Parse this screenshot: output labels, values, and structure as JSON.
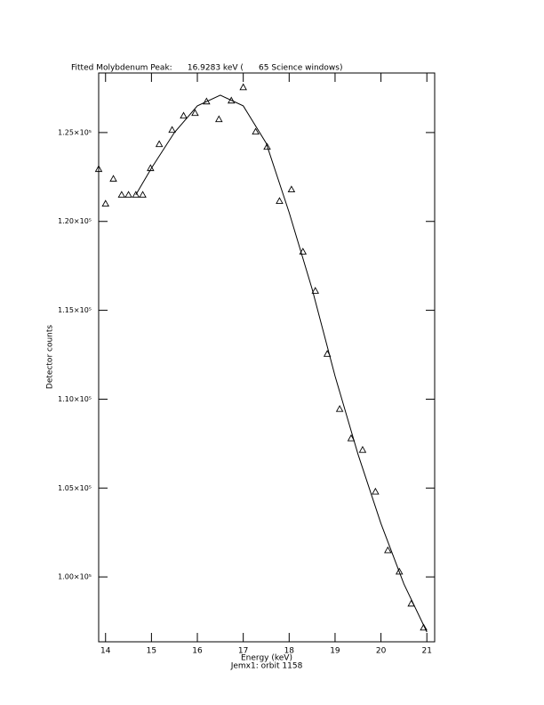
{
  "chart_data": {
    "type": "scatter",
    "title": "Fitted Molybdenum Peak:      16.9283 keV (      65 Science windows)",
    "x_label": "Energy (keV)",
    "subtitle": "Jemx1: orbit 1158",
    "y_label": "Detector counts",
    "xlim": [
      13.85,
      21.17
    ],
    "ylim": [
      96350,
      128350
    ],
    "xticks": [
      14,
      15,
      16,
      17,
      18,
      19,
      20,
      21
    ],
    "yticks": [
      {
        "value": 100000,
        "label": "1.00×10⁵"
      },
      {
        "value": 105000,
        "label": "1.05×10⁵"
      },
      {
        "value": 110000,
        "label": "1.10×10⁵"
      },
      {
        "value": 115000,
        "label": "1.15×10⁵"
      },
      {
        "value": 120000,
        "label": "1.20×10⁵"
      },
      {
        "value": 125000,
        "label": "1.25×10⁵"
      }
    ],
    "grid": false,
    "series": [
      {
        "style": "marker",
        "marker": "triangle",
        "color": "#000000",
        "x": [
          13.85,
          14.0,
          14.17,
          14.35,
          14.5,
          14.66,
          14.81,
          14.98,
          15.17,
          15.45,
          15.7,
          15.95,
          16.2,
          16.47,
          16.74,
          17.0,
          17.27,
          17.52,
          17.79,
          18.05,
          18.3,
          18.57,
          18.83,
          19.1,
          19.35,
          19.6,
          19.88,
          20.15,
          20.4,
          20.66,
          20.93
        ],
        "values": [
          122950,
          121000,
          122400,
          121500,
          121500,
          121500,
          121500,
          123000,
          124350,
          125150,
          125950,
          126100,
          126750,
          125750,
          126800,
          127550,
          125050,
          124200,
          121150,
          121800,
          118300,
          116100,
          112550,
          109450,
          107800,
          107150,
          104800,
          101500,
          100300,
          98500,
          97150
        ]
      },
      {
        "style": "line",
        "color": "#000000",
        "x": [
          14.66,
          15.0,
          15.5,
          16.0,
          16.5,
          17.0,
          17.5,
          18.0,
          18.5,
          19.0,
          19.5,
          20.0,
          20.5,
          21.0
        ],
        "values": [
          121500,
          123000,
          125000,
          126500,
          127100,
          126500,
          124400,
          120500,
          116200,
          111300,
          106900,
          103000,
          99600,
          96900
        ]
      }
    ]
  }
}
